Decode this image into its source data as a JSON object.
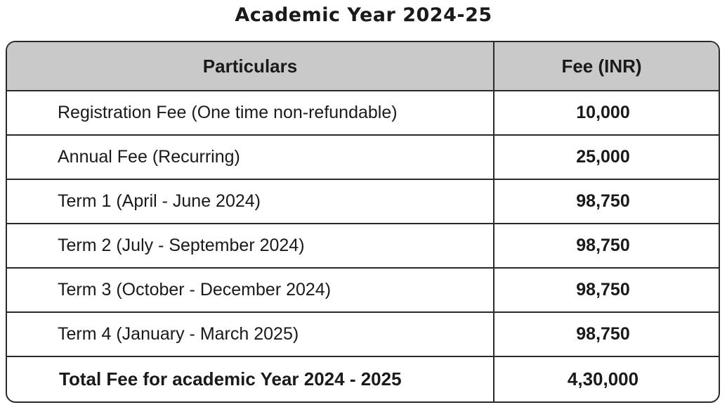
{
  "document": {
    "title": "Academic Year 2024-25"
  },
  "table": {
    "headers": {
      "particulars": "Particulars",
      "fee": "Fee (INR)"
    },
    "rows": [
      {
        "particular": "Registration Fee (One time non-refundable)",
        "fee": "10,000"
      },
      {
        "particular": "Annual Fee (Recurring)",
        "fee": "25,000"
      },
      {
        "particular": "Term 1 (April - June 2024)",
        "fee": "98,750"
      },
      {
        "particular": "Term 2 (July - September 2024)",
        "fee": "98,750"
      },
      {
        "particular": "Term 3 (October - December 2024)",
        "fee": "98,750"
      },
      {
        "particular": "Term 4 (January - March 2025)",
        "fee": "98,750"
      }
    ],
    "total": {
      "label": "Total Fee for academic Year 2024 - 2025",
      "fee": "4,30,000"
    }
  },
  "colors": {
    "header_background": "#c9c9ca",
    "border": "#2a2a2a",
    "text": "#1a1a1a"
  }
}
